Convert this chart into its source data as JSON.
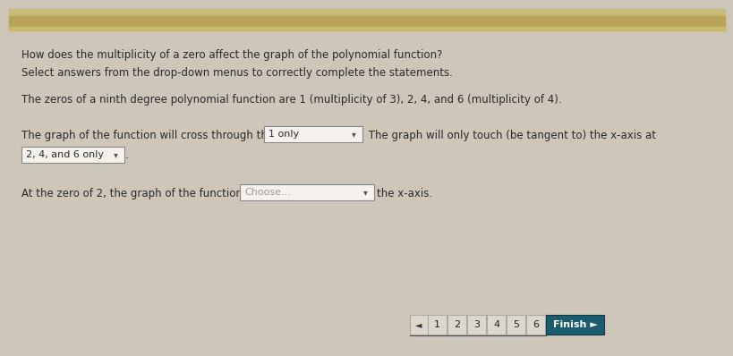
{
  "content_bg": "#ccc5b8",
  "top_bar_color1": "#b8a870",
  "top_bar_color2": "#d4c98a",
  "title": "How does the multiplicity of a zero affect the graph of the polynomial function?",
  "subtitle": "Select answers from the drop-down menus to correctly complete the statements.",
  "body_line": "The zeros of a ninth degree polynomial function are 1 (multiplicity of 3), 2, 4, and 6 (multiplicity of 4).",
  "sentence1_part1": "The graph of the function will cross through the x-axis at",
  "dropdown1_text": "1 only",
  "sentence1_part2": " The graph will only touch (be tangent to) the x-axis at",
  "dropdown2_text": "2, 4, and 6 only",
  "sentence2_part1": "At the zero of 2, the graph of the function will",
  "dropdown3_text": "Choose...",
  "sentence2_part2": "the x-axis.",
  "nav_numbers": [
    "1",
    "2",
    "3",
    "4",
    "5",
    "6"
  ],
  "finish_btn": "Finish ►",
  "nav_bg": "#1a5c6e",
  "text_color": "#2a2a2a",
  "dropdown_bg": "#f5f2ed",
  "dropdown_border": "#888888",
  "nav_cell_bg": "#ddd8cc",
  "nav_border": "#aaaaaa",
  "finish_text_color": "#ffffff",
  "inner_bg": "#ccc5b8"
}
